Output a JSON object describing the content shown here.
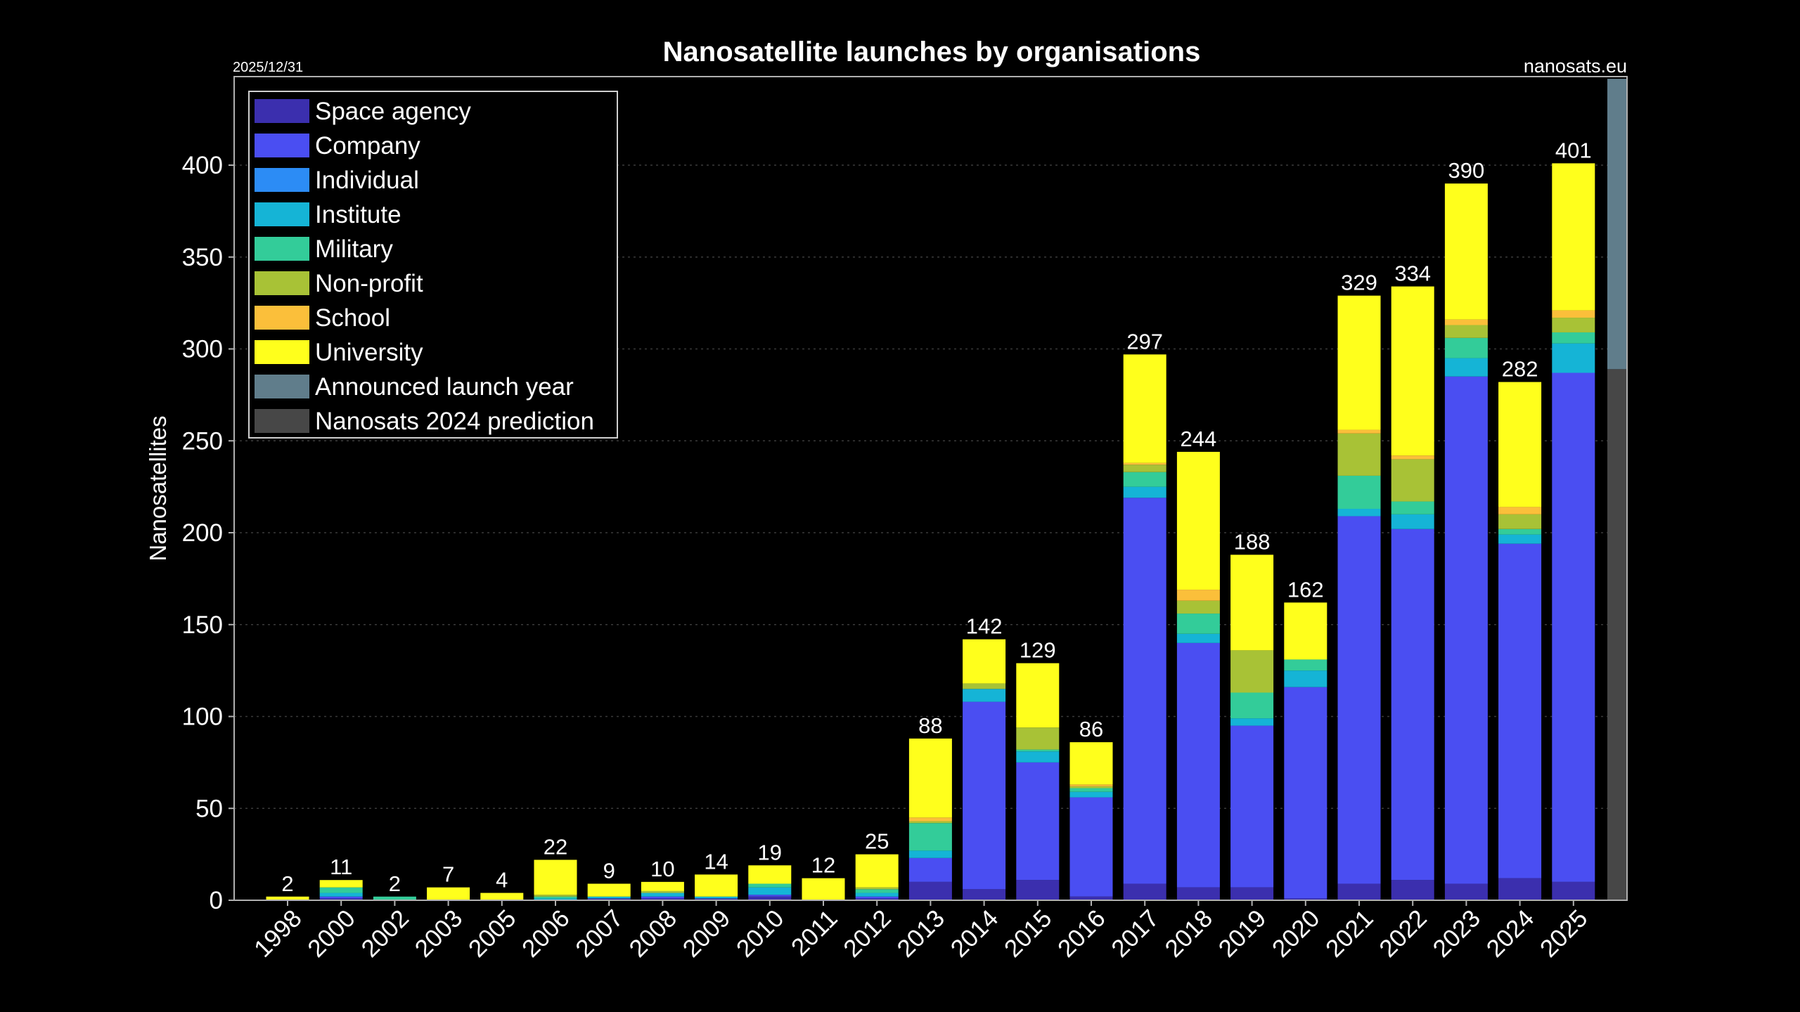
{
  "chart_data": {
    "type": "bar",
    "stacked": true,
    "title": "Nanosatellite launches by organisations",
    "date_label": "2025/12/31",
    "source_label": "nanosats.eu",
    "ylabel": "Nanosatellites",
    "xlabel": "",
    "ylim": [
      0,
      440
    ],
    "yticks": [
      0,
      50,
      100,
      150,
      200,
      250,
      300,
      350,
      400
    ],
    "grid": true,
    "legend_position": "top-left",
    "categories": [
      "1998",
      "2000",
      "2002",
      "2003",
      "2005",
      "2006",
      "2007",
      "2008",
      "2009",
      "2010",
      "2011",
      "2012",
      "2013",
      "2014",
      "2015",
      "2016",
      "2017",
      "2018",
      "2019",
      "2020",
      "2021",
      "2022",
      "2023",
      "2024",
      "2025"
    ],
    "totals": [
      2,
      11,
      2,
      7,
      4,
      22,
      9,
      10,
      14,
      19,
      12,
      25,
      88,
      142,
      129,
      86,
      297,
      244,
      188,
      162,
      329,
      334,
      390,
      282,
      401
    ],
    "series": [
      {
        "name": "Space agency",
        "color": "#3b2fae",
        "values": [
          0,
          1,
          0,
          0,
          0,
          0,
          1,
          1,
          1,
          2,
          0,
          1,
          10,
          6,
          11,
          2,
          9,
          7,
          7,
          1,
          9,
          11,
          9,
          12,
          10
        ]
      },
      {
        "name": "Company",
        "color": "#4a4ef2",
        "values": [
          0,
          1,
          0,
          0,
          0,
          0,
          0,
          1,
          0,
          1,
          0,
          1,
          13,
          102,
          64,
          54,
          210,
          133,
          88,
          115,
          200,
          191,
          276,
          182,
          277
        ]
      },
      {
        "name": "Individual",
        "color": "#2c8cf5",
        "values": [
          0,
          0,
          0,
          0,
          0,
          0,
          0,
          0,
          0,
          0,
          0,
          0,
          0,
          0,
          0,
          0,
          0,
          0,
          0,
          0,
          0,
          0,
          0,
          0,
          0
        ]
      },
      {
        "name": "Institute",
        "color": "#15b4d6",
        "values": [
          0,
          2,
          0,
          0,
          0,
          1,
          1,
          2,
          1,
          4,
          0,
          2,
          4,
          7,
          6,
          3,
          6,
          5,
          4,
          9,
          4,
          8,
          10,
          5,
          16
        ]
      },
      {
        "name": "Military",
        "color": "#33cc99",
        "values": [
          0,
          3,
          2,
          0,
          0,
          1,
          0,
          0,
          0,
          2,
          0,
          2,
          15,
          0,
          1,
          2,
          8,
          11,
          14,
          6,
          18,
          7,
          11,
          3,
          6
        ]
      },
      {
        "name": "Non-profit",
        "color": "#a8c236",
        "values": [
          0,
          0,
          0,
          0,
          0,
          1,
          0,
          1,
          0,
          0,
          0,
          1,
          1,
          3,
          12,
          1,
          4,
          7,
          23,
          0,
          23,
          23,
          7,
          8,
          8
        ]
      },
      {
        "name": "School",
        "color": "#fbbf3a",
        "values": [
          0,
          0,
          0,
          0,
          0,
          0,
          0,
          0,
          0,
          0,
          0,
          0,
          2,
          0,
          0,
          1,
          1,
          6,
          0,
          0,
          2,
          2,
          3,
          4,
          4
        ]
      },
      {
        "name": "University",
        "color": "#ffff1c",
        "values": [
          2,
          4,
          0,
          7,
          4,
          19,
          7,
          5,
          12,
          10,
          12,
          18,
          43,
          24,
          35,
          23,
          59,
          75,
          52,
          31,
          73,
          92,
          74,
          68,
          80
        ]
      }
    ],
    "announced_launch_year": {
      "name": "Announced launch year",
      "color": "#607d8b",
      "top": 447
    },
    "prediction": {
      "name": "Nanosats 2024 prediction",
      "color": "#474747",
      "value": 289
    }
  }
}
